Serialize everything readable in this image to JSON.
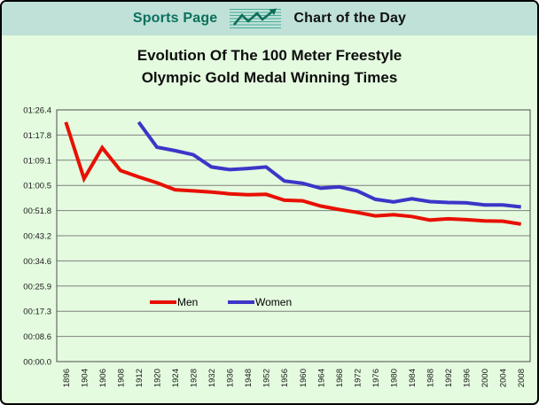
{
  "header": {
    "left_title": "Sports Page",
    "right_title": "Chart of the Day",
    "icon": "line-chart-arrow-icon"
  },
  "title": {
    "line1": "Evolution Of The 100 Meter Freestyle",
    "line2": "Olympic Gold Medal Winning Times"
  },
  "colors": {
    "men_line": "#e81000",
    "women_line": "#3d35c8",
    "header_bg": "#bfe1d8",
    "page_bg": "#e4fbdf",
    "accent_text": "#0b705d",
    "gridline": "#808080",
    "plot_border": "#4d4d4d",
    "axis_text": "#1a1a1a",
    "icon_stripe": "#49ab97",
    "icon_line": "#0d6e59"
  },
  "chart_data": {
    "type": "line",
    "title": "Evolution Of The 100 Meter Freestyle Olympic Gold Medal Winning Times",
    "x_categories": [
      "1896",
      "1904",
      "1906",
      "1908",
      "1912",
      "1920",
      "1924",
      "1928",
      "1932",
      "1936",
      "1948",
      "1952",
      "1956",
      "1960",
      "1964",
      "1968",
      "1972",
      "1976",
      "1980",
      "1984",
      "1988",
      "1992",
      "1996",
      "2000",
      "2004",
      "2008"
    ],
    "series": [
      {
        "name": "Men",
        "color": "#e81000",
        "values_seconds": [
          82.2,
          62.8,
          73.4,
          65.6,
          63.4,
          61.4,
          59.0,
          58.6,
          58.2,
          57.6,
          57.3,
          57.4,
          55.4,
          55.2,
          53.4,
          52.2,
          51.2,
          50.0,
          50.4,
          49.8,
          48.6,
          49.0,
          48.7,
          48.3,
          48.2,
          47.2
        ]
      },
      {
        "name": "Women",
        "color": "#3d35c8",
        "values_seconds": [
          null,
          null,
          null,
          null,
          82.2,
          73.6,
          72.4,
          71.0,
          66.8,
          65.9,
          66.3,
          66.8,
          62.0,
          61.2,
          59.5,
          60.0,
          58.6,
          55.7,
          54.8,
          55.9,
          54.9,
          54.6,
          54.5,
          53.8,
          53.8,
          53.1
        ]
      }
    ],
    "y_axis": {
      "ticks": [
        "01:26.4",
        "01:17.8",
        "01:09.1",
        "01:00.5",
        "00:51.8",
        "00:43.2",
        "00:34.6",
        "00:25.9",
        "00:17.3",
        "00:08.6",
        "00:00.0"
      ],
      "min_seconds": 0,
      "max_seconds": 86.4,
      "format": "mm:ss.t"
    },
    "legend": {
      "position": "inside-plot-lower-center",
      "entries": [
        "Men",
        "Women"
      ]
    },
    "grid": "horizontal"
  }
}
